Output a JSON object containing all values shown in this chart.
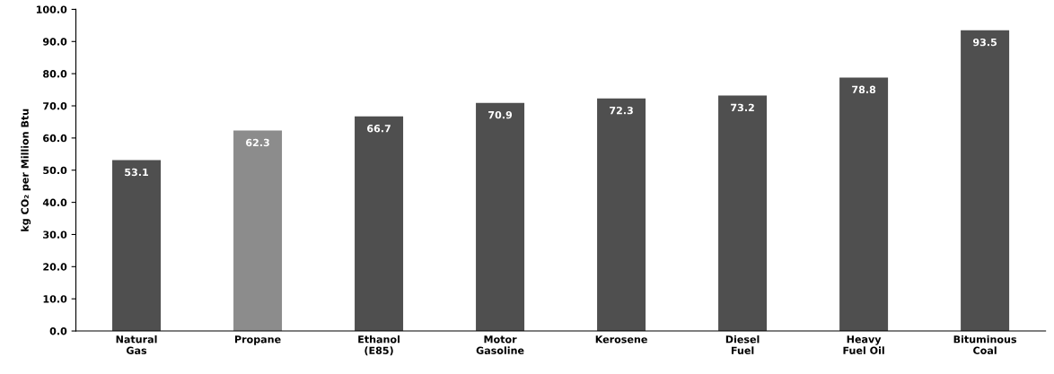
{
  "chart_data": {
    "type": "bar",
    "ylabel": "kg CO₂ per Million Btu",
    "categories": [
      "Natural\nGas",
      "Propane",
      "Ethanol\n(E85)",
      "Motor\nGasoline",
      "Kerosene",
      "Diesel\nFuel",
      "Heavy\nFuel Oil",
      "Bituminous\nCoal"
    ],
    "values": [
      53.1,
      62.3,
      66.7,
      70.9,
      72.3,
      73.2,
      78.8,
      93.5
    ],
    "colors": [
      "#4f4f4f",
      "#8c8c8c",
      "#4f4f4f",
      "#4f4f4f",
      "#4f4f4f",
      "#4f4f4f",
      "#4f4f4f",
      "#4f4f4f"
    ],
    "ylim": [
      0,
      100
    ],
    "yticks": [
      {
        "value": 0,
        "label": "0.0"
      },
      {
        "value": 10,
        "label": "10.0"
      },
      {
        "value": 20,
        "label": "20.0"
      },
      {
        "value": 30,
        "label": "30.0"
      },
      {
        "value": 40,
        "label": "40.0"
      },
      {
        "value": 50,
        "label": "50.0"
      },
      {
        "value": 60,
        "label": "60.0"
      },
      {
        "value": 70,
        "label": "70.0"
      },
      {
        "value": 80,
        "label": "80.0"
      },
      {
        "value": 90,
        "label": "90.0"
      },
      {
        "value": 100,
        "label": "100.0"
      }
    ],
    "data_labels": true,
    "grid": false
  }
}
